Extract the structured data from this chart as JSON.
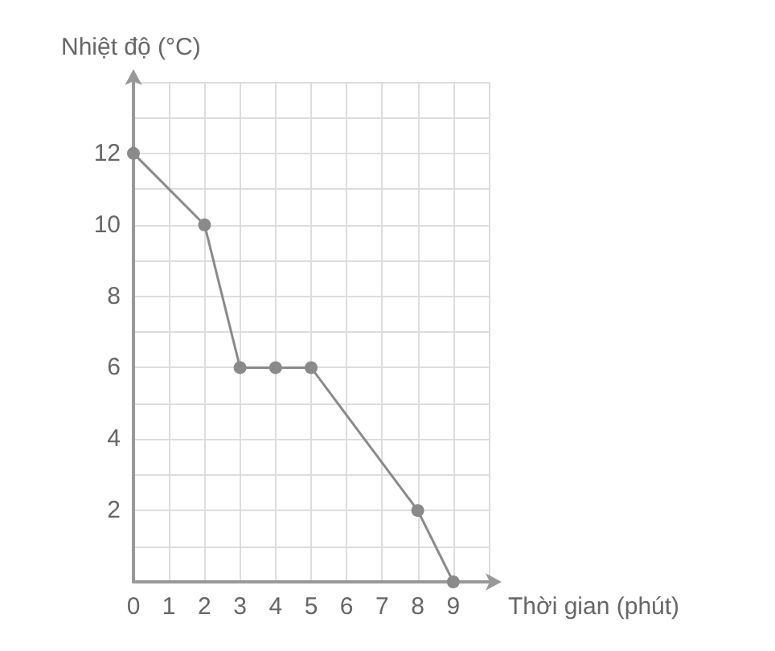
{
  "chart_data": {
    "type": "line",
    "xlabel": "Thời gian (phút)",
    "ylabel": "Nhiệt độ (°C)",
    "x": [
      0,
      2,
      3,
      4,
      5,
      8,
      9
    ],
    "values": [
      12,
      10,
      6,
      6,
      6,
      2,
      0
    ],
    "color": "#8a8a8a",
    "marker": "circle",
    "line_style": "solid",
    "grid": true,
    "xlim": [
      0,
      10
    ],
    "ylim": [
      0,
      14
    ],
    "xticks": [
      0,
      1,
      2,
      3,
      4,
      5,
      6,
      7,
      8,
      9,
      {
        "value": 10,
        "label": null
      }
    ],
    "yticks": [
      {
        "value": 0,
        "label": null
      },
      {
        "value": 1,
        "label": null
      },
      2,
      {
        "value": 3,
        "label": null
      },
      4,
      {
        "value": 5,
        "label": null
      },
      6,
      {
        "value": 7,
        "label": null
      },
      8,
      {
        "value": 9,
        "label": null
      },
      10,
      {
        "value": 11,
        "label": null
      },
      12,
      {
        "value": 13,
        "label": null
      },
      {
        "value": 14,
        "label": null
      }
    ]
  }
}
